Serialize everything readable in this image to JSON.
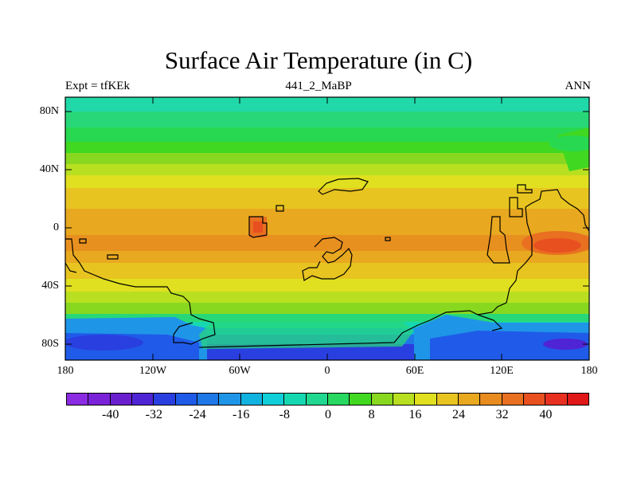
{
  "title": "Surface Air Temperature (in C)",
  "subtitle_left": "Expt = tfKEk",
  "subtitle_center": "441_2_MaBP",
  "subtitle_right": "ANN",
  "lat_labels": [
    "80N",
    "40N",
    "0",
    "40S",
    "80S"
  ],
  "lon_labels": [
    "180",
    "120W",
    "60W",
    "0",
    "60E",
    "120E",
    "180"
  ],
  "colorbar": {
    "labels": [
      "-40",
      "-32",
      "-24",
      "-16",
      "-8",
      "0",
      "8",
      "16",
      "24",
      "32",
      "40"
    ],
    "colors": [
      "#8b2be2",
      "#7a22d8",
      "#6a1fcf",
      "#4f24d4",
      "#2a3fe0",
      "#1f5be8",
      "#1f78e8",
      "#1f95e8",
      "#10b2e0",
      "#10cfd8",
      "#16d8b0",
      "#20d890",
      "#28d860",
      "#40d820",
      "#88d820",
      "#b8e020",
      "#e0e020",
      "#e8c420",
      "#e8a820",
      "#e88c20",
      "#e87020",
      "#e85020",
      "#e83020",
      "#e01818"
    ]
  }
}
